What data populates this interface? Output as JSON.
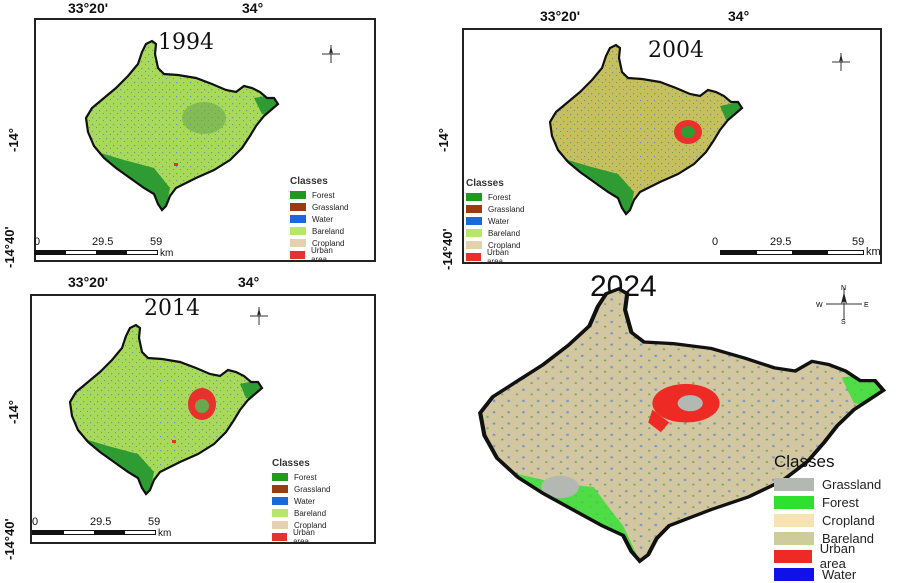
{
  "coords": {
    "lon1": "33°20'",
    "lon2": "34°",
    "lat1": "-14°",
    "lat2": "-14°40'"
  },
  "scale": {
    "n0": "0",
    "n1": "29.5",
    "n2": "59",
    "unit": "km"
  },
  "north": {
    "n": "N",
    "s": "S",
    "e": "E",
    "w": "W"
  },
  "panels": [
    {
      "year": "1994",
      "fill": "#a8d95a"
    },
    {
      "year": "2004",
      "fill": "#c5bf5e"
    },
    {
      "year": "2014",
      "fill": "#a8d95a"
    },
    {
      "year": "2024",
      "fill": "#d2c7a0"
    }
  ],
  "legend_small": {
    "title": "Classes",
    "items": [
      {
        "label": "Forest",
        "color": "#1f9a1f"
      },
      {
        "label": "Grassland",
        "color": "#9b3b12"
      },
      {
        "label": "Water",
        "color": "#1c67e0"
      },
      {
        "label": "Bareland",
        "color": "#b5e86a"
      },
      {
        "label": "Cropland",
        "color": "#e3d2ad"
      },
      {
        "label": "Urban area",
        "color": "#e8312c"
      }
    ]
  },
  "legend_2024": {
    "title": "Classes",
    "items": [
      {
        "label": "Grassland",
        "color": "#b3b8b3"
      },
      {
        "label": "Forest",
        "color": "#2fe12f"
      },
      {
        "label": "Cropland",
        "color": "#f7e3b1"
      },
      {
        "label": "Bareland",
        "color": "#cfcc9c"
      },
      {
        "label": "Urban area",
        "color": "#ee2a25"
      },
      {
        "label": "Water",
        "color": "#1010e8"
      }
    ]
  }
}
